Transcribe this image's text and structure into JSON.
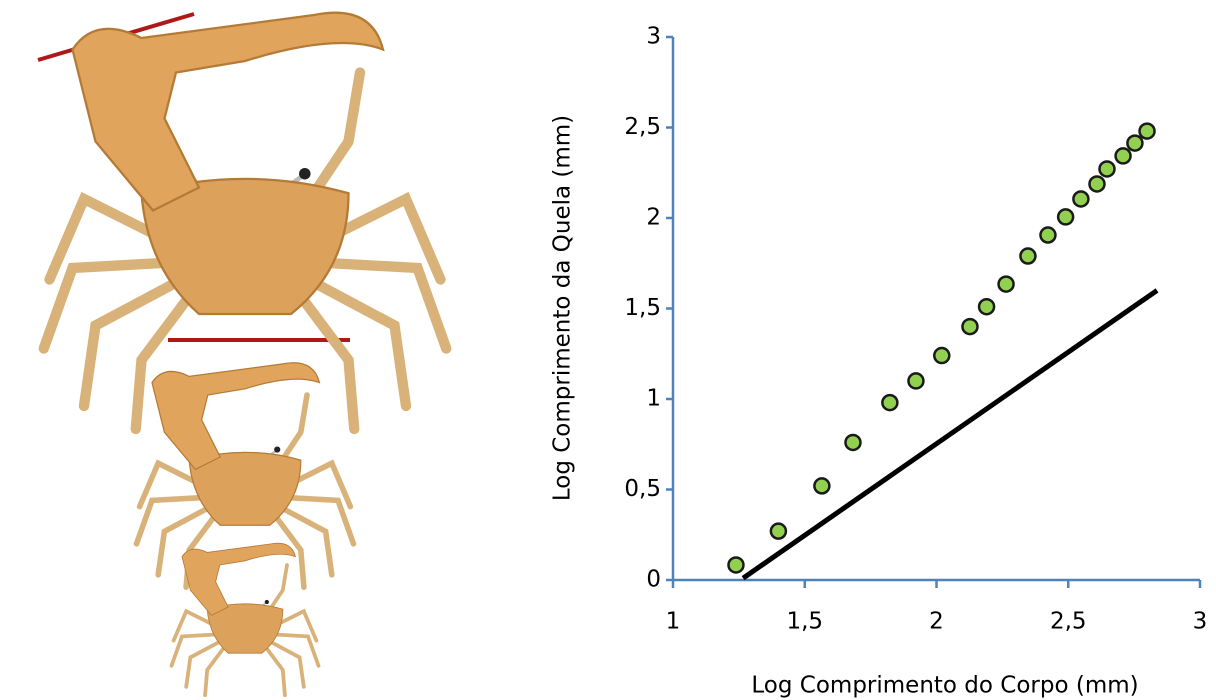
{
  "chart_data": {
    "type": "scatter",
    "xlabel": "Log Comprimento do Corpo (mm)",
    "ylabel": "Log Comprimento da Quela (mm)",
    "xlim": [
      1,
      3
    ],
    "xticks": [
      1,
      {
        "value": 1.5,
        "label": "1,5"
      },
      2,
      {
        "value": 2.5,
        "label": "2,5"
      },
      3
    ],
    "ylim": [
      0,
      3
    ],
    "yticks": [
      0,
      {
        "value": 0.5,
        "label": "0,5"
      },
      1,
      {
        "value": 1.5,
        "label": "1,5"
      },
      2,
      {
        "value": 2.5,
        "label": "2,5"
      },
      3
    ],
    "series": [
      {
        "type": "scatter",
        "color": "#92d050",
        "x": [
          1.239,
          1.4,
          1.565,
          1.683,
          1.823,
          1.922,
          2.02,
          2.127,
          2.19,
          2.264,
          2.347,
          2.423,
          2.49,
          2.548,
          2.609,
          2.647,
          2.708,
          2.753,
          2.799
        ],
        "values": [
          0.083,
          0.27,
          0.52,
          0.76,
          0.98,
          1.1,
          1.24,
          1.4,
          1.51,
          1.635,
          1.79,
          1.906,
          2.006,
          2.105,
          2.188,
          2.271,
          2.343,
          2.414,
          2.48
        ]
      },
      {
        "type": "line",
        "color": "#000000",
        "x": [
          1.266,
          2.837
        ],
        "values": [
          0.01,
          1.6
        ]
      }
    ]
  }
}
